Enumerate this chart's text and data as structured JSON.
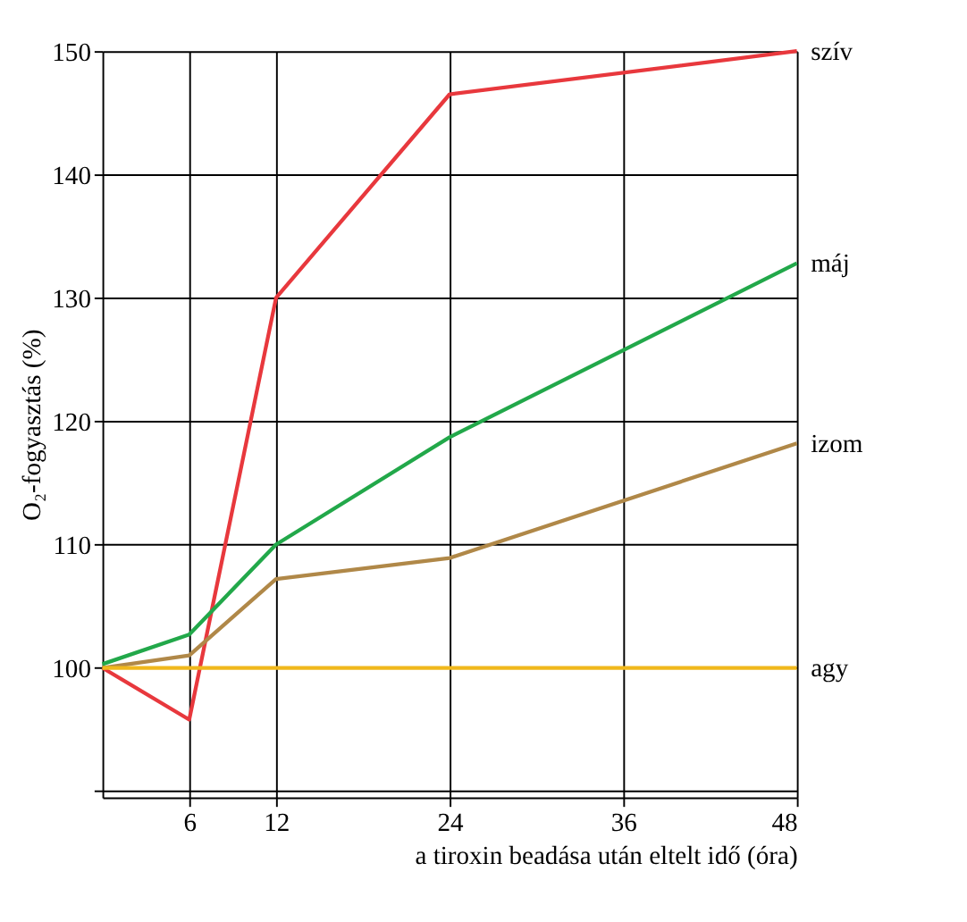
{
  "chart_data": {
    "type": "line",
    "xlabel": "a tiroxin beadása után eltelt idő (óra)",
    "ylabel": "O₂-fogyasztás (%)",
    "xlim": [
      0,
      48
    ],
    "xticks": [
      6,
      12,
      24,
      36,
      48
    ],
    "ylim": [
      89.5,
      150
    ],
    "yticks": [
      {
        "value": 90,
        "label": null
      },
      100,
      110,
      120,
      130,
      140,
      150
    ],
    "grid": true,
    "legend": false,
    "marker": "none",
    "line_style": "solid",
    "x": [
      0,
      6,
      12,
      24,
      48
    ],
    "series": [
      {
        "name": "szív",
        "color": "#e8383d",
        "values": [
          100,
          95.8,
          130,
          146.5,
          150
        ]
      },
      {
        "name": "máj",
        "color": "#22a84a",
        "values": [
          100.3,
          102.7,
          110,
          118.7,
          132.8
        ]
      },
      {
        "name": "izom",
        "color": "#b08848",
        "values": [
          100,
          101,
          107.2,
          108.9,
          118.2
        ]
      },
      {
        "name": "agy",
        "color": "#f0b81c",
        "values": [
          100,
          100,
          100,
          100,
          100
        ]
      }
    ]
  }
}
